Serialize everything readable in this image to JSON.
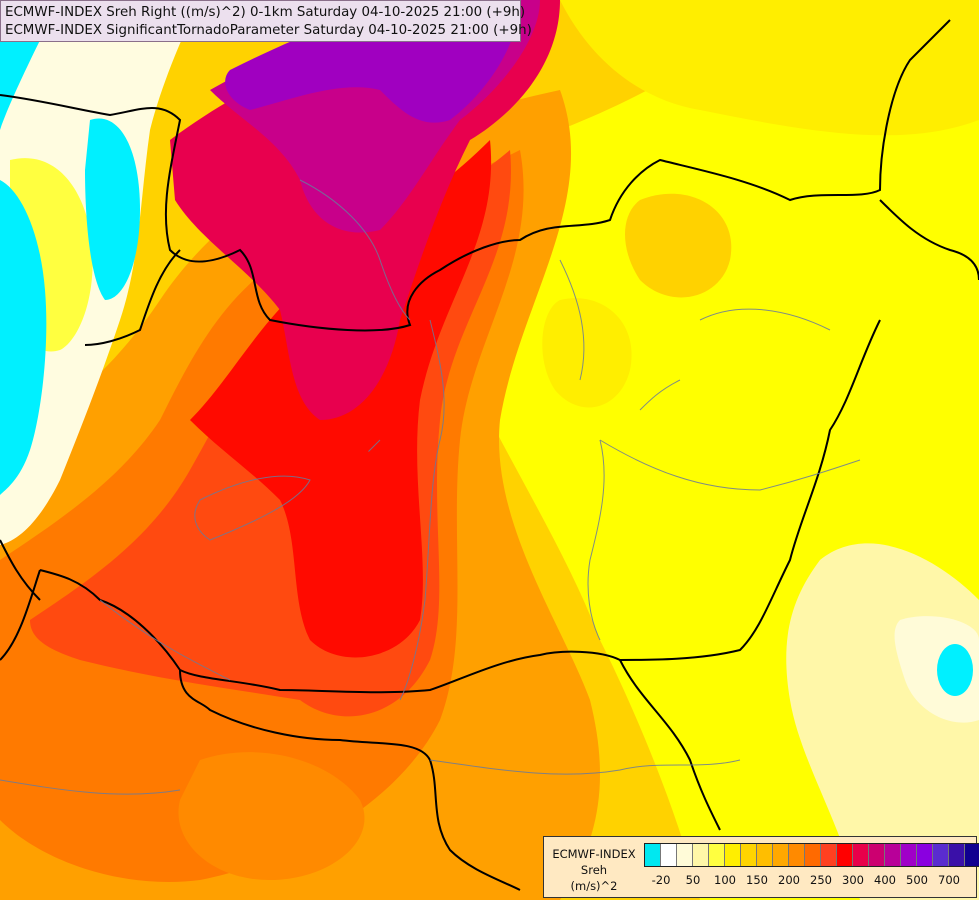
{
  "title": {
    "line1": "ECMWF-INDEX Sreh Right ((m/s)^2) 0-1km Saturday 04-10-2025 21:00 (+9h)",
    "line2": "ECMWF-INDEX SignificantTornadoParameter Saturday 04-10-2025 21:00 (+9h)"
  },
  "legend": {
    "title_lines": [
      "ECMWF-INDEX",
      "Sreh",
      "(m/s)^2"
    ],
    "tick_labels": [
      "-20",
      "50",
      "100",
      "150",
      "200",
      "250",
      "300",
      "400",
      "500",
      "700"
    ],
    "colors": [
      "#00e8f0",
      "#ffffff",
      "#fffbd8",
      "#fff7a8",
      "#ffff40",
      "#ffee00",
      "#ffd400",
      "#ffbe00",
      "#ffa800",
      "#ff8a00",
      "#ff6a00",
      "#ff4020",
      "#ff0000",
      "#e8004a",
      "#cc0070",
      "#b80099",
      "#a000c8",
      "#8a00e0",
      "#5a2cd0",
      "#3a10a8",
      "#100090"
    ]
  },
  "map": {
    "field": "Sreh Right 0-1km",
    "palette": {
      "cyan": "#00f0ff",
      "white": "#fffce0",
      "yellow": "#ffff00",
      "gold": "#ffd200",
      "orange": "#ffa000",
      "dark_orange": "#ff7a00",
      "red_orange": "#ff4a10",
      "red": "#ff0a00",
      "crimson": "#e8004e",
      "magenta": "#c8008a",
      "purple": "#a000c0"
    }
  }
}
